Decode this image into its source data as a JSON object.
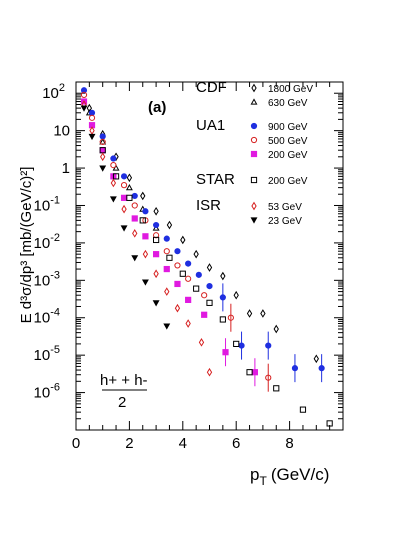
{
  "chart_data": {
    "type": "scatter",
    "panel_label": "(a)",
    "xlabel": "p",
    "xlabel_sub": "T",
    "xlabel_units": "(GeV/c)",
    "ylabel": "E d³σ/dp³ [mb/(GeV/c)²]",
    "y_log": true,
    "xlim": [
      0,
      10
    ],
    "ylim_exp": [
      -7,
      2.3
    ],
    "x_ticks": [
      "0",
      "2",
      "4",
      "6",
      "8"
    ],
    "y_ticks": [
      "10 2",
      "10",
      "1",
      "10 -1",
      "10 -2",
      "10 -3",
      "10 -4",
      "10 -5",
      "10 -6"
    ],
    "normalization": {
      "numerator": "h+ + h-",
      "denominator": "2"
    },
    "legend_groups": [
      {
        "experiment": "CDF",
        "entries": [
          {
            "label": "1800 GeV",
            "series": 0
          },
          {
            "label": "630 GeV",
            "series": 1
          }
        ]
      },
      {
        "experiment": "UA1",
        "entries": [
          {
            "label": "900 GeV",
            "series": 2
          },
          {
            "label": "500 GeV",
            "series": 3
          },
          {
            "label": "200 GeV",
            "series": 4
          }
        ]
      },
      {
        "experiment": "STAR",
        "entries": [
          {
            "label": "200 GeV",
            "series": 5
          }
        ]
      },
      {
        "experiment": "ISR",
        "entries": [
          {
            "label": "53 GeV",
            "series": 6
          },
          {
            "label": "23 GeV",
            "series": 7
          }
        ]
      }
    ],
    "series": [
      {
        "name": "CDF 1800 GeV",
        "marker": "open-diamond",
        "color": "#000000",
        "x": [
          0.5,
          1.0,
          1.5,
          2.0,
          2.5,
          3.0,
          3.5,
          4.0,
          4.5,
          5.0,
          5.5,
          6.0,
          6.5,
          7.0,
          7.5,
          9.0
        ],
        "y": [
          40,
          8,
          2.0,
          0.55,
          0.18,
          0.07,
          0.03,
          0.012,
          0.005,
          0.0022,
          0.0013,
          0.0004,
          0.00013,
          0.00013,
          5e-05,
          8e-06
        ]
      },
      {
        "name": "CDF 630 GeV",
        "marker": "open-triangle",
        "color": "#000000",
        "x": [
          0.5,
          1.0,
          1.5,
          2.0,
          2.5,
          3.0
        ],
        "y": [
          30,
          5,
          1.0,
          0.3,
          0.08,
          0.025
        ]
      },
      {
        "name": "UA1 900 GeV",
        "marker": "filled-circle",
        "color": "#1f2fe0",
        "x": [
          0.3,
          0.6,
          1.0,
          1.4,
          1.8,
          2.2,
          2.6,
          3.0,
          3.4,
          3.8,
          4.2,
          4.6,
          5.0,
          5.5,
          6.2,
          7.2,
          8.2,
          9.2
        ],
        "y": [
          120,
          30,
          7,
          1.8,
          0.6,
          0.18,
          0.07,
          0.03,
          0.013,
          0.006,
          0.0028,
          0.0014,
          0.0007,
          0.00035,
          1.8e-05,
          1.8e-05,
          4.5e-06,
          4.5e-06
        ]
      },
      {
        "name": "UA1 500 GeV",
        "marker": "open-circle",
        "color": "#d62020",
        "x": [
          0.3,
          0.6,
          1.0,
          1.4,
          1.8,
          2.2,
          2.6,
          3.0,
          3.4,
          3.8,
          4.2,
          4.8,
          5.8,
          7.2
        ],
        "y": [
          90,
          22,
          5,
          1.2,
          0.35,
          0.1,
          0.04,
          0.016,
          0.006,
          0.0025,
          0.0011,
          0.0004,
          0.0001,
          2.5e-06
        ]
      },
      {
        "name": "UA1 200 GeV",
        "marker": "filled-square",
        "color": "#e01ae0",
        "x": [
          0.3,
          0.6,
          1.0,
          1.4,
          1.8,
          2.2,
          2.6,
          3.0,
          3.4,
          3.8,
          4.2,
          4.8,
          5.6,
          6.7
        ],
        "y": [
          60,
          14,
          3,
          0.6,
          0.16,
          0.045,
          0.015,
          0.005,
          0.002,
          0.0008,
          0.0003,
          0.00012,
          1.2e-05,
          3.5e-06
        ]
      },
      {
        "name": "STAR 200 GeV",
        "marker": "open-square",
        "color": "#000000",
        "x": [
          1.0,
          1.5,
          2.0,
          2.5,
          3.0,
          3.5,
          4.0,
          4.5,
          5.0,
          5.5,
          6.0,
          6.5,
          7.5,
          8.5,
          9.5
        ],
        "y": [
          3,
          0.6,
          0.16,
          0.04,
          0.012,
          0.004,
          0.0015,
          0.0006,
          0.00025,
          9e-05,
          2e-05,
          3.5e-06,
          1.3e-06,
          3.5e-07,
          1.5e-07
        ]
      },
      {
        "name": "ISR 53 GeV",
        "marker": "open-diamond",
        "color": "#d62020",
        "x": [
          0.3,
          0.6,
          1.0,
          1.4,
          1.8,
          2.2,
          2.6,
          3.0,
          3.4,
          3.8,
          4.2,
          4.7,
          5.0
        ],
        "y": [
          50,
          10,
          2,
          0.4,
          0.08,
          0.018,
          0.005,
          0.0015,
          0.0005,
          0.00018,
          7e-05,
          2.2e-05,
          3.5e-06
        ]
      },
      {
        "name": "ISR 23 GeV",
        "marker": "filled-triangle-down",
        "color": "#000000",
        "x": [
          0.3,
          0.6,
          1.0,
          1.4,
          1.8,
          2.2,
          2.6,
          3.0,
          3.4
        ],
        "y": [
          40,
          7,
          1.0,
          0.15,
          0.025,
          0.004,
          0.0009,
          0.00025,
          6e-05
        ]
      }
    ]
  }
}
